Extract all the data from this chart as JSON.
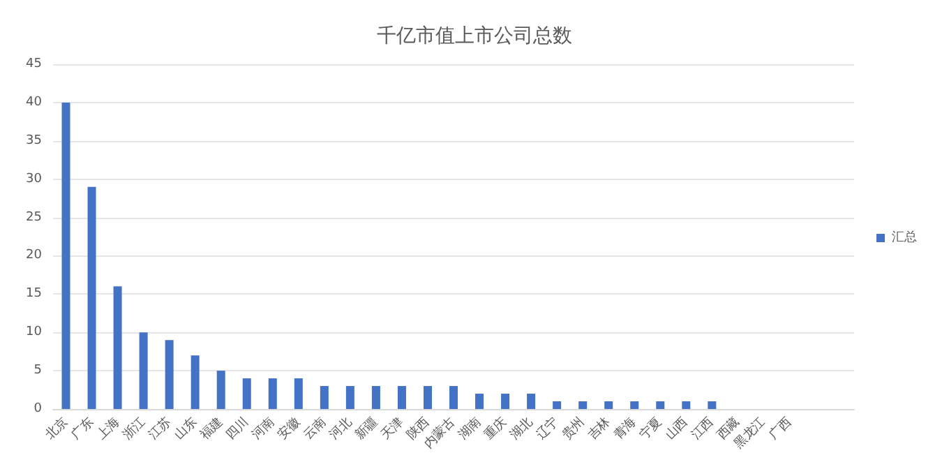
{
  "chart_data": {
    "type": "bar",
    "title": "千亿市值上市公司总数",
    "categories": [
      "北京",
      "广东",
      "上海",
      "浙江",
      "江苏",
      "山东",
      "福建",
      "四川",
      "河南",
      "安徽",
      "云南",
      "河北",
      "新疆",
      "天津",
      "陕西",
      "内蒙古",
      "湖南",
      "重庆",
      "湖北",
      "辽宁",
      "贵州",
      "吉林",
      "青海",
      "宁夏",
      "山西",
      "江西",
      "西藏",
      "黑龙江",
      "广西",
      null,
      null
    ],
    "series": [
      {
        "name": "汇总",
        "color": "#4472c4",
        "values": [
          40,
          29,
          16,
          10,
          9,
          7,
          5,
          4,
          4,
          4,
          3,
          3,
          3,
          3,
          3,
          3,
          2,
          2,
          2,
          1,
          1,
          1,
          1,
          1,
          1,
          1,
          0,
          0,
          0,
          0,
          0
        ]
      }
    ],
    "ylim": [
      0,
      45
    ],
    "yticks": [
      0,
      5,
      10,
      15,
      20,
      25,
      30,
      35,
      40,
      45
    ],
    "grid": "y",
    "legend": "right"
  }
}
